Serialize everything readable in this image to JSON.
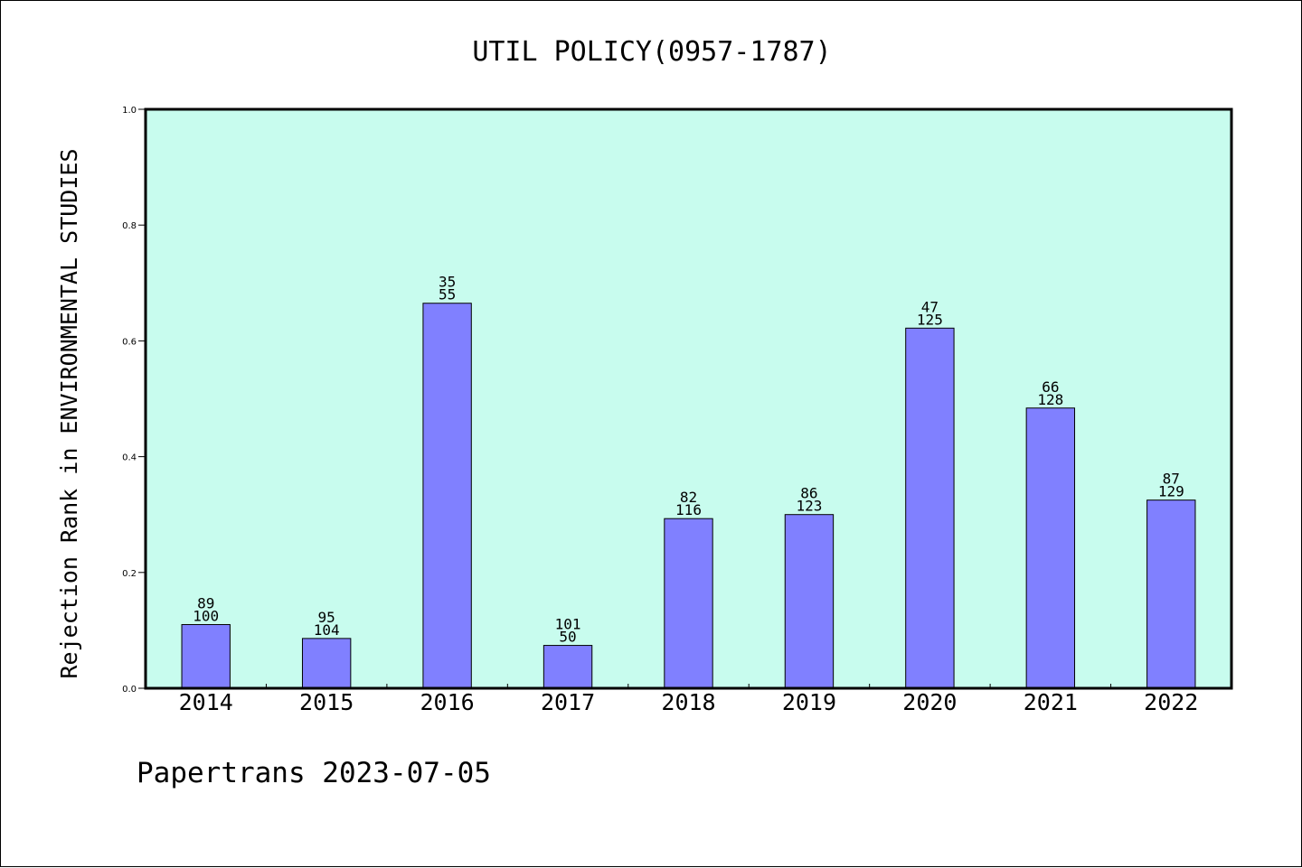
{
  "chart_data": {
    "type": "bar",
    "title": "UTIL POLICY(0957-1787)",
    "xlabel": "",
    "ylabel": "Rejection Rank in ENVIRONMENTAL STUDIES",
    "ylim": [
      0,
      1.0
    ],
    "y_ticks": [
      "0.0",
      "0.2",
      "0.4",
      "0.6",
      "0.8",
      "1.0"
    ],
    "categories": [
      "2014",
      "2015",
      "2016",
      "2017",
      "2018",
      "2019",
      "2020",
      "2021",
      "2022"
    ],
    "values": [
      0.11,
      0.086,
      0.665,
      0.074,
      0.293,
      0.3,
      0.622,
      0.484,
      0.325
    ],
    "labels_top": [
      "89",
      "95",
      "35",
      "101",
      "82",
      "86",
      "47",
      "66",
      "87"
    ],
    "labels_bottom": [
      "100",
      "104",
      "55",
      "50",
      "116",
      "123",
      "125",
      "128",
      "129"
    ],
    "grid": false,
    "plot_background": "#c8fcee",
    "bar_color": "#8080ff"
  },
  "footer": "Papertrans 2023-07-05"
}
